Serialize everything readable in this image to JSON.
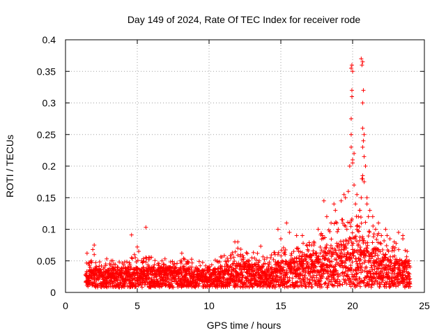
{
  "chart_data": {
    "type": "scatter",
    "title": "Day 149 of 2024, Rate Of TEC Index for receiver rode",
    "xlabel": "GPS time / hours",
    "ylabel": "ROTI / TECUs",
    "xlim": [
      0,
      25
    ],
    "ylim": [
      0,
      0.4
    ],
    "x_ticks": [
      0,
      5,
      10,
      15,
      20,
      25
    ],
    "x_tick_labels": [
      "0",
      "5",
      "10",
      "15",
      "20",
      "25"
    ],
    "y_ticks": [
      0,
      0.05,
      0.1,
      0.15,
      0.2,
      0.25,
      0.3,
      0.35,
      0.4
    ],
    "y_tick_labels": [
      "0",
      "0.05",
      "0.1",
      "0.15",
      "0.2",
      "0.25",
      "0.3",
      "0.35",
      "0.4"
    ],
    "grid": true,
    "marker": "+",
    "color": "#ff0000",
    "series": [
      {
        "name": "ROTI",
        "x": [
          1.4,
          1.5,
          1.6,
          1.7,
          1.8,
          1.9,
          2.0,
          2.1,
          2.3,
          2.5,
          2.8,
          3.0,
          3.3,
          3.6,
          3.9,
          4.2,
          4.5,
          4.6,
          4.8,
          5.0,
          5.1,
          5.3,
          5.6,
          5.8,
          6.0,
          6.3,
          6.6,
          7.0,
          7.3,
          7.6,
          8.0,
          8.1,
          8.4,
          8.8,
          9.2,
          9.6,
          10.0,
          10.4,
          10.8,
          11.2,
          11.6,
          11.8,
          12.0,
          12.2,
          12.4,
          12.8,
          13.2,
          13.5,
          13.8,
          14.2,
          14.6,
          14.8,
          15.0,
          15.3,
          15.6,
          15.9,
          16.2,
          16.5,
          16.8,
          17.0,
          17.3,
          17.6,
          17.9,
          18.2,
          18.5,
          18.8,
          19.0,
          19.3,
          19.5,
          19.7,
          19.8,
          19.9,
          19.95,
          20.0,
          20.1,
          20.2,
          20.3,
          20.4,
          20.5,
          20.6,
          20.65,
          20.7,
          20.75,
          20.8,
          20.9,
          21.0,
          21.2,
          21.4,
          21.6,
          21.8,
          22.0,
          22.3,
          22.6,
          22.9,
          23.2,
          23.5,
          23.8,
          24.0,
          2.0,
          4.6,
          5.6,
          13.6,
          19.9,
          19.95,
          20.6,
          20.65,
          20.7,
          20.75,
          19.9,
          20.7,
          19.9,
          20.7,
          20.0,
          20.7,
          20.0,
          20.7,
          19.95,
          20.8,
          19.4,
          20.1,
          20.8,
          19.2,
          18.7,
          20.3,
          21.0,
          19.6,
          18.9,
          23.5,
          16.1,
          14.8,
          15.4,
          17.3,
          12.0,
          22.4,
          19.5,
          20.5,
          21.1,
          18.0
        ],
        "y": [
          0.028,
          0.062,
          0.045,
          0.035,
          0.05,
          0.068,
          0.075,
          0.04,
          0.035,
          0.042,
          0.045,
          0.032,
          0.038,
          0.04,
          0.035,
          0.038,
          0.042,
          0.055,
          0.06,
          0.072,
          0.065,
          0.05,
          0.048,
          0.052,
          0.04,
          0.035,
          0.038,
          0.042,
          0.04,
          0.045,
          0.05,
          0.062,
          0.045,
          0.04,
          0.038,
          0.035,
          0.04,
          0.038,
          0.042,
          0.045,
          0.06,
          0.08,
          0.07,
          0.06,
          0.055,
          0.05,
          0.045,
          0.05,
          0.045,
          0.048,
          0.06,
          0.1,
          0.085,
          0.06,
          0.095,
          0.065,
          0.07,
          0.09,
          0.075,
          0.075,
          0.08,
          0.1,
          0.09,
          0.12,
          0.11,
          0.13,
          0.1,
          0.115,
          0.15,
          0.16,
          0.2,
          0.25,
          0.36,
          0.35,
          0.22,
          0.14,
          0.1,
          0.12,
          0.13,
          0.15,
          0.18,
          0.365,
          0.32,
          0.25,
          0.2,
          0.15,
          0.13,
          0.12,
          0.1,
          0.11,
          0.09,
          0.1,
          0.085,
          0.08,
          0.095,
          0.085,
          0.065,
          0.04,
          0.06,
          0.091,
          0.103,
          0.073,
          0.355,
          0.32,
          0.37,
          0.36,
          0.3,
          0.24,
          0.275,
          0.26,
          0.23,
          0.23,
          0.21,
          0.18,
          0.205,
          0.185,
          0.31,
          0.215,
          0.155,
          0.17,
          0.175,
          0.145,
          0.14,
          0.155,
          0.14,
          0.1,
          0.11,
          0.09,
          0.09,
          0.06,
          0.11,
          0.075,
          0.08,
          0.09,
          0.105,
          0.13,
          0.12,
          0.145
        ],
        "band": {
          "description": "dense cloud of ROTI samples from 1.4 h to 24.0 h",
          "x_range": [
            1.4,
            24.0
          ],
          "lower_y": [
            [
              1.4,
              0.008
            ],
            [
              5,
              0.008
            ],
            [
              10,
              0.008
            ],
            [
              15,
              0.008
            ],
            [
              20,
              0.008
            ],
            [
              24,
              0.008
            ]
          ],
          "upper_y": [
            [
              1.4,
              0.035
            ],
            [
              3,
              0.04
            ],
            [
              5,
              0.04
            ],
            [
              8,
              0.04
            ],
            [
              10,
              0.035
            ],
            [
              11.5,
              0.045
            ],
            [
              12.5,
              0.05
            ],
            [
              14,
              0.04
            ],
            [
              15,
              0.05
            ],
            [
              16,
              0.055
            ],
            [
              17,
              0.06
            ],
            [
              18,
              0.07
            ],
            [
              19,
              0.08
            ],
            [
              20,
              0.09
            ],
            [
              21,
              0.08
            ],
            [
              22,
              0.065
            ],
            [
              23,
              0.055
            ],
            [
              24,
              0.05
            ]
          ]
        }
      }
    ]
  }
}
